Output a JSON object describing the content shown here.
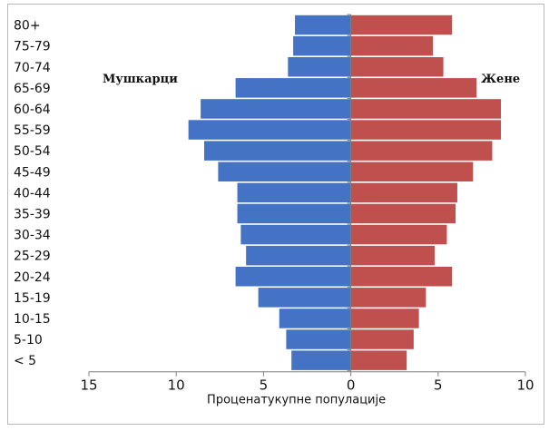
{
  "chart_data": {
    "type": "bar",
    "orientation": "horizontal-pyramid",
    "title": "",
    "xlabel": "Проценатукупне популације",
    "ylabel": "",
    "categories": [
      "< 5",
      "5-10",
      "10-15",
      "15-19",
      "20-24",
      "25-29",
      "30-34",
      "35-39",
      "40-44",
      "45-49",
      "50-54",
      "55-59",
      "60-64",
      "65-69",
      "70-74",
      "75-79",
      "80+"
    ],
    "series": [
      {
        "name": "Мушкарци",
        "side": "left",
        "color": "#4472c4",
        "values": [
          3.4,
          3.7,
          4.1,
          5.3,
          6.6,
          6.0,
          6.3,
          6.5,
          6.5,
          7.6,
          8.4,
          9.3,
          8.6,
          6.6,
          3.6,
          3.3,
          3.2
        ]
      },
      {
        "name": "Жене",
        "side": "right",
        "color": "#c0504d",
        "values": [
          3.2,
          3.6,
          3.9,
          4.3,
          5.8,
          4.8,
          5.5,
          6.0,
          6.1,
          7.0,
          8.1,
          8.6,
          8.6,
          7.2,
          5.3,
          4.7,
          5.8
        ]
      }
    ],
    "xticks": [
      "15",
      "10",
      "5",
      "0",
      "5",
      "10"
    ],
    "xlim": [
      -15,
      10
    ],
    "grid": false,
    "legend": "inline-labels"
  }
}
